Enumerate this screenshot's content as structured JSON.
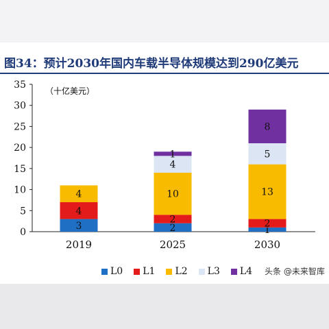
{
  "title": "图34：预计2030年国内车载半导体规模达到290亿美元",
  "watermark": "头条 @未来智库",
  "chart_data": {
    "type": "bar",
    "stacked": true,
    "categories": [
      "2019",
      "2025",
      "2030"
    ],
    "unit_label": "（十亿美元）",
    "ylim": [
      0,
      35
    ],
    "yticks": [
      0,
      5,
      10,
      15,
      20,
      25,
      30,
      35
    ],
    "grid": false,
    "legend_position": "bottom",
    "series": [
      {
        "name": "L0",
        "color": "#1f6fc5",
        "values": [
          3,
          2,
          1
        ]
      },
      {
        "name": "L1",
        "color": "#e31b1b",
        "values": [
          4,
          2,
          2
        ]
      },
      {
        "name": "L2",
        "color": "#f8bb00",
        "values": [
          4,
          10,
          13
        ]
      },
      {
        "name": "L3",
        "color": "#dbe5f3",
        "values": [
          0,
          4,
          5
        ]
      },
      {
        "name": "L4",
        "color": "#7030a0",
        "values": [
          0,
          1,
          8
        ]
      }
    ]
  }
}
